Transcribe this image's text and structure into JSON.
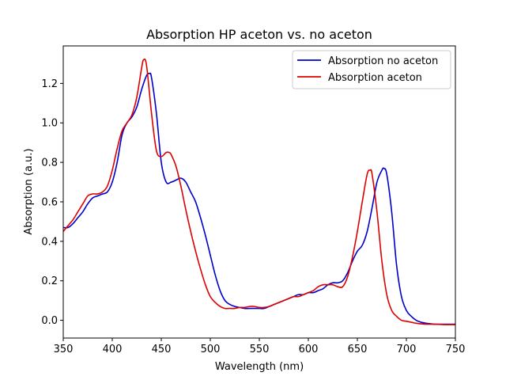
{
  "chart_data": {
    "type": "line",
    "title": "Absorption HP aceton vs. no aceton",
    "xlabel": "Wavelength (nm)",
    "ylabel": "Absorption (a.u.)",
    "xlim": [
      350,
      750
    ],
    "ylim": [
      -0.09,
      1.39
    ],
    "xticks": [
      350,
      400,
      450,
      500,
      550,
      600,
      650,
      700,
      750
    ],
    "xtick_labels": [
      "350",
      "400",
      "450",
      "500",
      "550",
      "600",
      "650",
      "700",
      "750"
    ],
    "yticks": [
      0.0,
      0.2,
      0.4,
      0.6,
      0.8,
      1.0,
      1.2
    ],
    "ytick_labels": [
      "0.0",
      "0.2",
      "0.4",
      "0.6",
      "0.8",
      "1.0",
      "1.2"
    ],
    "grid": false,
    "legend_position": "top-right",
    "series": [
      {
        "name": "Absorption no aceton",
        "color": "#0000cc",
        "x": [
          350,
          355,
          360,
          365,
          370,
          375,
          380,
          385,
          390,
          395,
          400,
          405,
          410,
          415,
          420,
          425,
          430,
          435,
          438,
          440,
          445,
          450,
          455,
          460,
          465,
          470,
          475,
          480,
          485,
          490,
          495,
          500,
          505,
          510,
          515,
          520,
          525,
          530,
          535,
          540,
          545,
          550,
          555,
          560,
          565,
          570,
          575,
          580,
          585,
          590,
          595,
          600,
          605,
          610,
          615,
          620,
          625,
          630,
          635,
          640,
          645,
          650,
          655,
          660,
          665,
          670,
          675,
          677,
          680,
          685,
          690,
          695,
          700,
          705,
          710,
          715,
          720,
          725,
          730,
          740,
          750
        ],
        "y": [
          0.47,
          0.47,
          0.49,
          0.52,
          0.55,
          0.59,
          0.62,
          0.63,
          0.64,
          0.65,
          0.7,
          0.8,
          0.94,
          1.0,
          1.03,
          1.08,
          1.17,
          1.24,
          1.25,
          1.23,
          1.05,
          0.8,
          0.7,
          0.7,
          0.71,
          0.72,
          0.7,
          0.65,
          0.6,
          0.52,
          0.43,
          0.33,
          0.23,
          0.15,
          0.1,
          0.08,
          0.07,
          0.065,
          0.06,
          0.06,
          0.06,
          0.06,
          0.06,
          0.07,
          0.08,
          0.09,
          0.1,
          0.11,
          0.12,
          0.13,
          0.13,
          0.14,
          0.14,
          0.15,
          0.16,
          0.18,
          0.19,
          0.19,
          0.2,
          0.24,
          0.3,
          0.35,
          0.38,
          0.45,
          0.57,
          0.7,
          0.76,
          0.77,
          0.74,
          0.55,
          0.28,
          0.12,
          0.05,
          0.02,
          0.0,
          -0.01,
          -0.015,
          -0.018,
          -0.02,
          -0.02,
          -0.02
        ]
      },
      {
        "name": "Absorption aceton",
        "color": "#dd0000",
        "x": [
          350,
          355,
          360,
          365,
          370,
          375,
          380,
          385,
          390,
          395,
          400,
          405,
          410,
          415,
          420,
          425,
          430,
          432,
          435,
          440,
          445,
          450,
          455,
          458,
          460,
          465,
          470,
          475,
          480,
          485,
          490,
          495,
          500,
          505,
          510,
          515,
          520,
          525,
          530,
          535,
          540,
          545,
          550,
          555,
          560,
          565,
          570,
          575,
          580,
          585,
          590,
          595,
          600,
          605,
          610,
          615,
          620,
          625,
          630,
          635,
          640,
          645,
          650,
          655,
          660,
          663,
          665,
          670,
          675,
          680,
          685,
          690,
          695,
          700,
          705,
          710,
          720,
          730,
          740,
          750
        ],
        "y": [
          0.45,
          0.48,
          0.51,
          0.55,
          0.59,
          0.63,
          0.64,
          0.64,
          0.65,
          0.68,
          0.76,
          0.87,
          0.96,
          1.0,
          1.04,
          1.13,
          1.28,
          1.32,
          1.29,
          1.05,
          0.86,
          0.83,
          0.85,
          0.85,
          0.84,
          0.78,
          0.68,
          0.56,
          0.45,
          0.35,
          0.26,
          0.18,
          0.12,
          0.09,
          0.07,
          0.06,
          0.06,
          0.06,
          0.065,
          0.065,
          0.07,
          0.07,
          0.065,
          0.065,
          0.07,
          0.08,
          0.09,
          0.1,
          0.11,
          0.12,
          0.12,
          0.13,
          0.14,
          0.15,
          0.17,
          0.18,
          0.18,
          0.18,
          0.17,
          0.17,
          0.22,
          0.32,
          0.45,
          0.6,
          0.74,
          0.76,
          0.74,
          0.55,
          0.3,
          0.13,
          0.05,
          0.02,
          0.0,
          -0.005,
          -0.01,
          -0.015,
          -0.02,
          -0.02,
          -0.022,
          -0.022
        ]
      }
    ]
  }
}
